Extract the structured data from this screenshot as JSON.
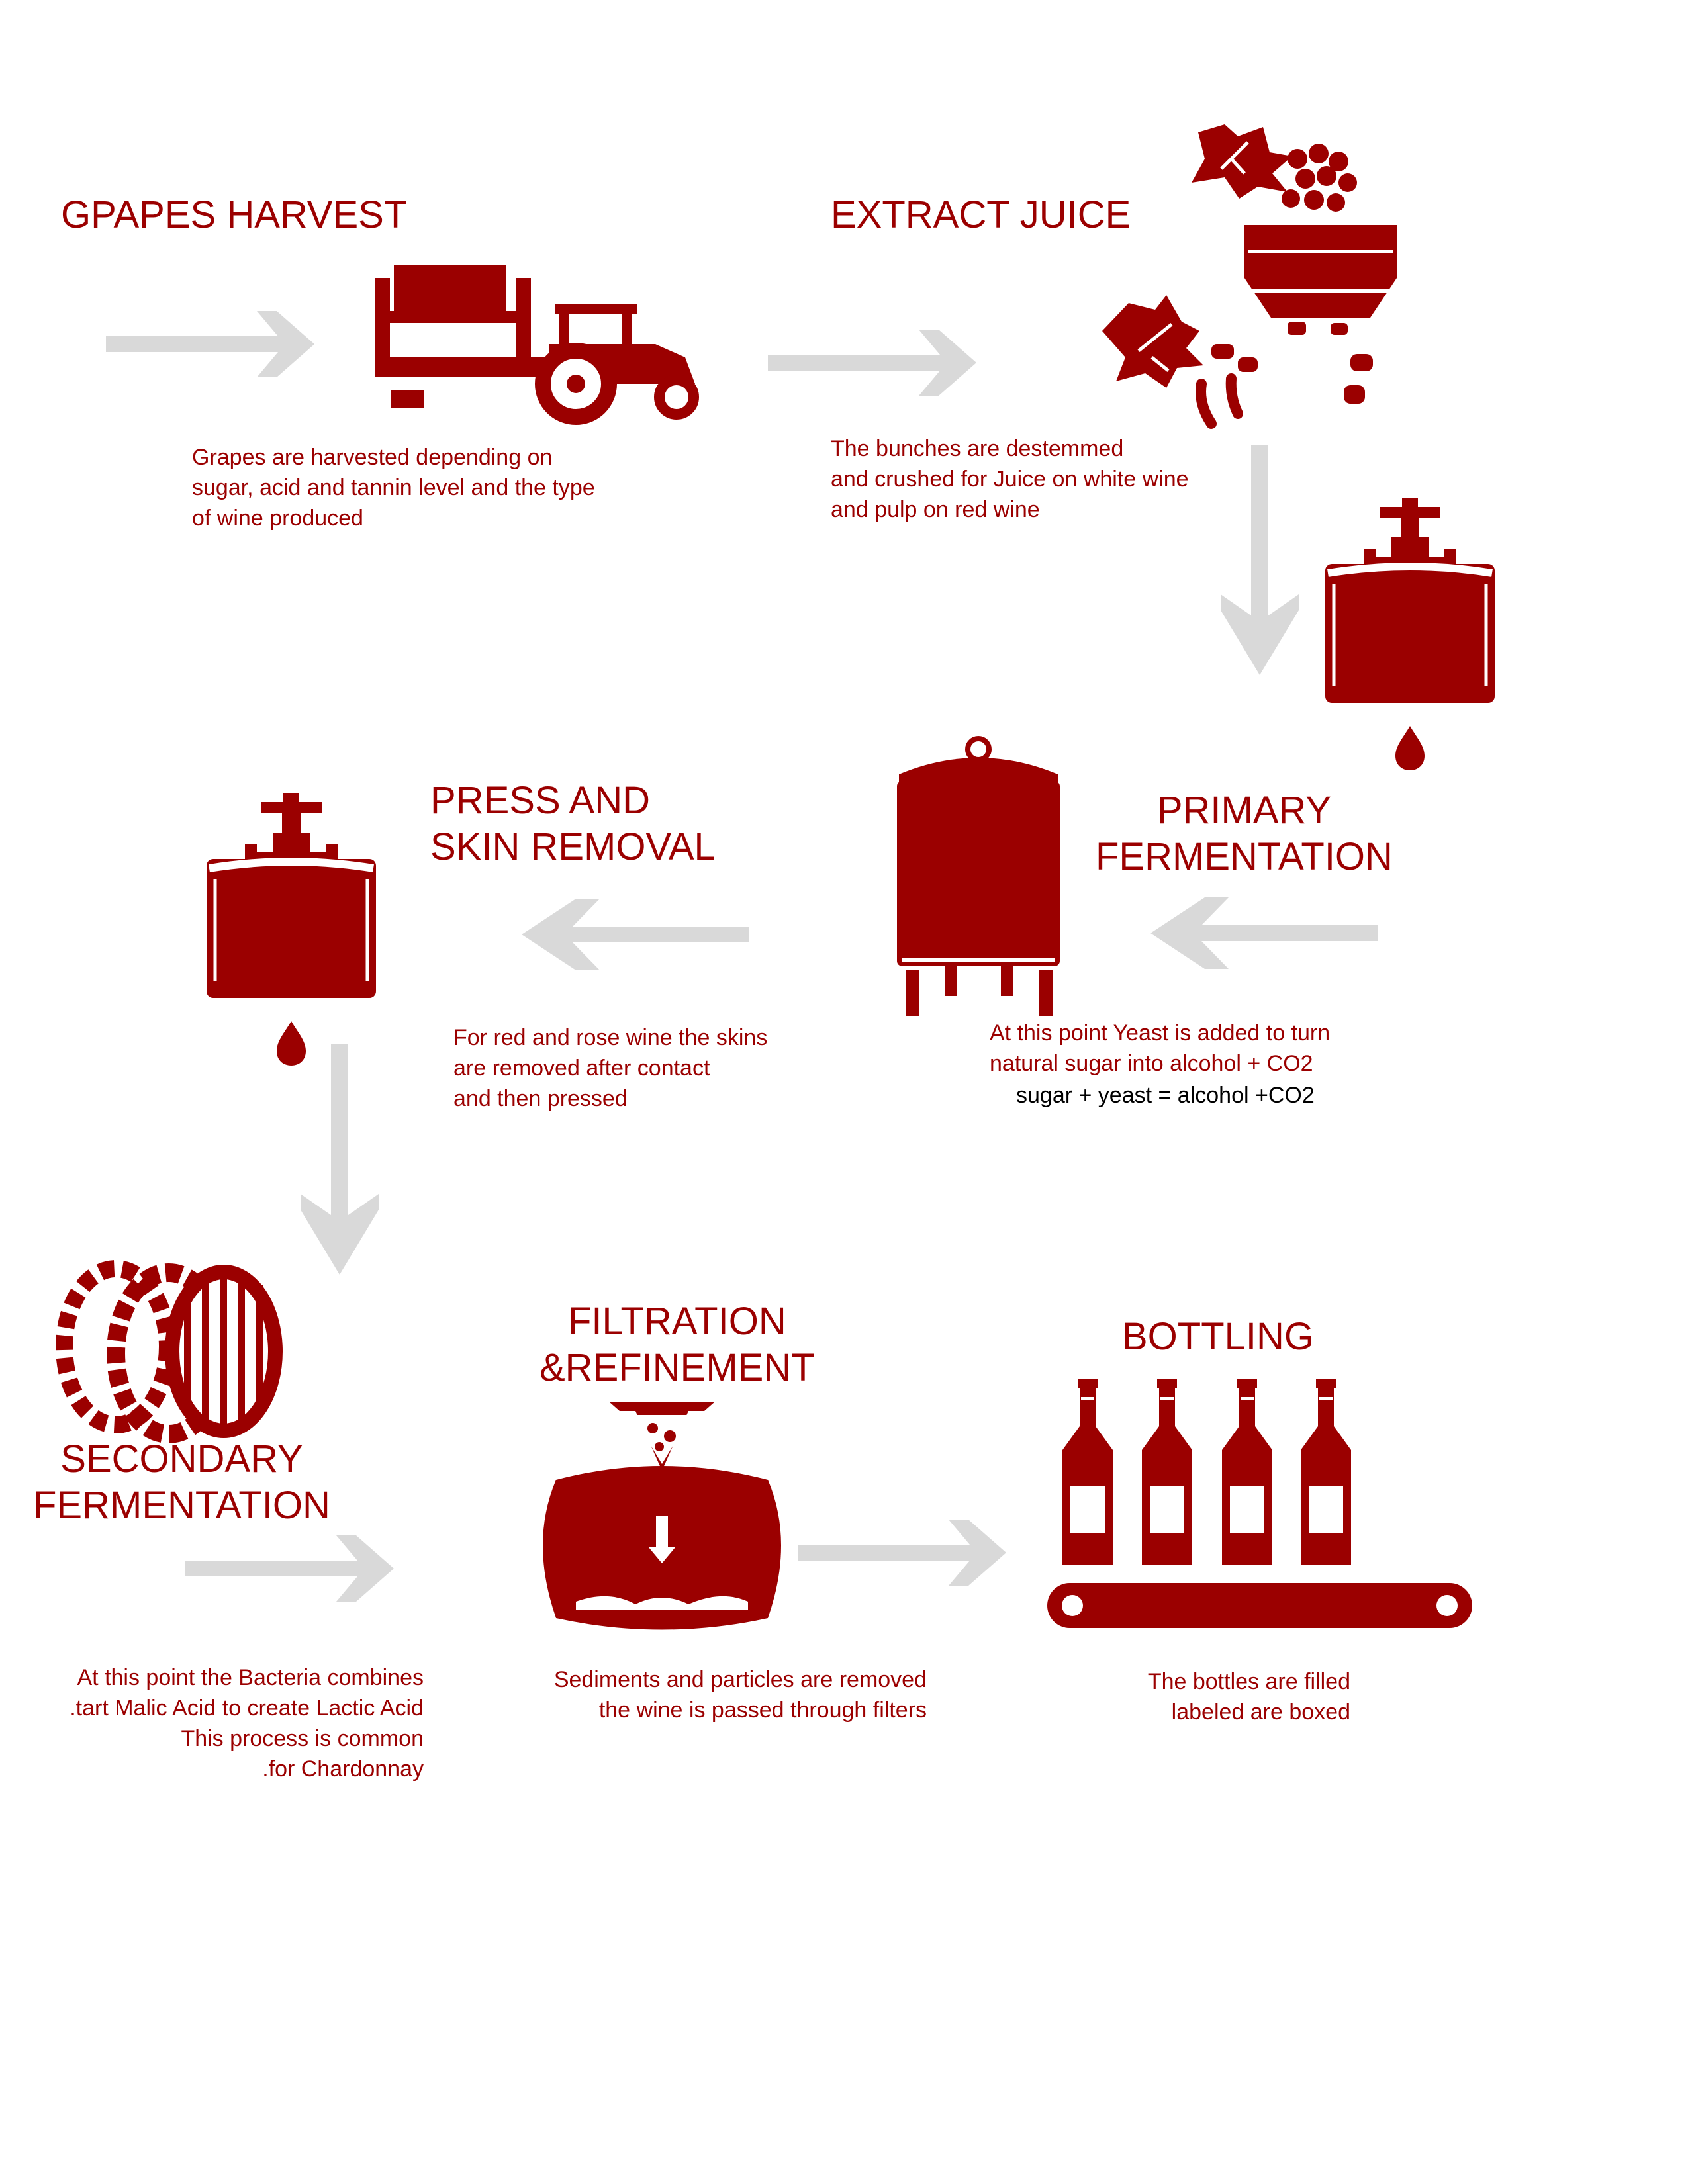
{
  "colors": {
    "accent": "#9b0000",
    "arrow": "#d9d9d9",
    "background": "#ffffff",
    "formula": "#000000"
  },
  "steps": [
    {
      "title": "GPAPES HARVEST",
      "description": "Grapes are harvested depending on\nsugar, acid and tannin level and the type\nof wine produced",
      "icon": "tractor-icon"
    },
    {
      "title": "EXTRACT JUICE",
      "description": "The bunches are destemmed\n and crushed for Juice on white wine\nand pulp on red wine",
      "icon": "grape-crusher-icon"
    },
    {
      "title": "PRIMARY\nFERMENTATION",
      "description": "At this point Yeast is added to turn\nnatural sugar into alcohol + CO2",
      "formula": "sugar + yeast = alcohol +CO2",
      "icon": "fermentation-tank-icon"
    },
    {
      "title": "PRESS AND\nSKIN REMOVAL",
      "description": "For red and rose wine the skins\n are removed after contact\nand then pressed",
      "icon": "press-icon"
    },
    {
      "title": "SECONDARY\nFERMENTATION",
      "description": "At this point the Bacteria combines\n.tart Malic Acid to create Lactic Acid\nThis process is common\n.for Chardonnay",
      "icon": "barrel-icon"
    },
    {
      "title": "FILTRATION\n&REFINEMENT",
      "description": "Sediments and particles are removed\nthe wine is passed through filters",
      "icon": "filter-icon"
    },
    {
      "title": "BOTTLING",
      "description": "The bottles are filled\nlabeled are boxed",
      "icon": "bottles-conveyor-icon"
    }
  ]
}
